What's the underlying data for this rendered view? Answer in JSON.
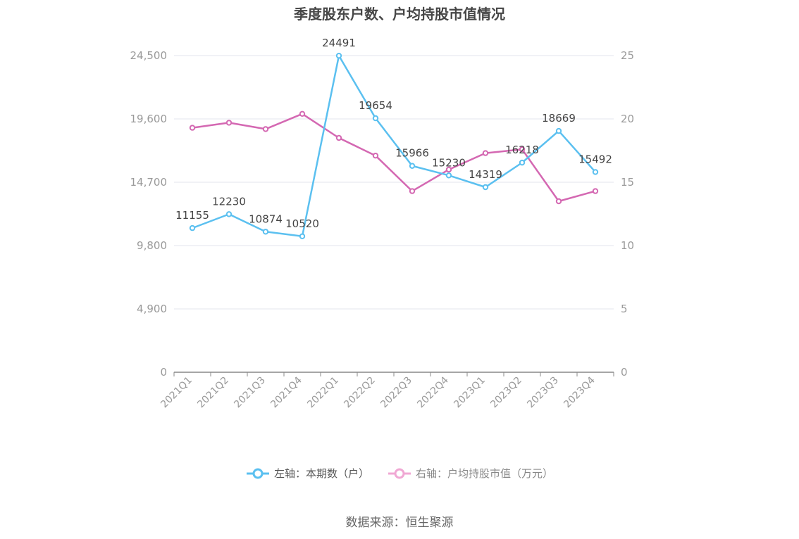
{
  "chart_data": {
    "type": "line",
    "title": "季度股东户数、户均持股市值情况",
    "categories": [
      "2021Q1",
      "2021Q2",
      "2021Q3",
      "2021Q4",
      "2022Q1",
      "2022Q2",
      "2022Q3",
      "2022Q4",
      "2023Q1",
      "2023Q2",
      "2023Q3",
      "2023Q4"
    ],
    "y_left": {
      "ticks": [
        "0",
        "4,900",
        "9,800",
        "14,700",
        "19,600",
        "24,500"
      ],
      "ylim": [
        0,
        24500
      ]
    },
    "y_right": {
      "ticks": [
        "0",
        "5",
        "10",
        "15",
        "20",
        "25"
      ],
      "ylim": [
        0,
        25
      ]
    },
    "series": [
      {
        "name": "左轴：本期数（户）",
        "axis": "left",
        "color": "#5bc0f0",
        "values": [
          11155,
          12230,
          10874,
          10520,
          24491,
          19654,
          15966,
          15230,
          14319,
          16218,
          18669,
          15492
        ],
        "labels": [
          "11155",
          "12230",
          "10874",
          "10520",
          "24491",
          "19654",
          "15966",
          "15230",
          "14319",
          "16218",
          "18669",
          "15492"
        ]
      },
      {
        "name": "右轴：户均持股市值（万元）",
        "axis": "right",
        "color": "#d468b2",
        "values": [
          19.3,
          19.7,
          19.2,
          20.4,
          18.5,
          17.1,
          14.3,
          16.0,
          17.3,
          17.6,
          13.5,
          14.3
        ]
      }
    ],
    "grid": true,
    "legend_position": "bottom"
  },
  "legend": {
    "left_label": "左轴：本期数（户）",
    "right_label": "右轴：户均持股市值（万元）",
    "left_color": "#5bc0f0",
    "right_color": "#f0a8d4",
    "right_text_color": "#888888",
    "left_text_color": "#555555"
  },
  "source": "数据来源：恒生聚源"
}
